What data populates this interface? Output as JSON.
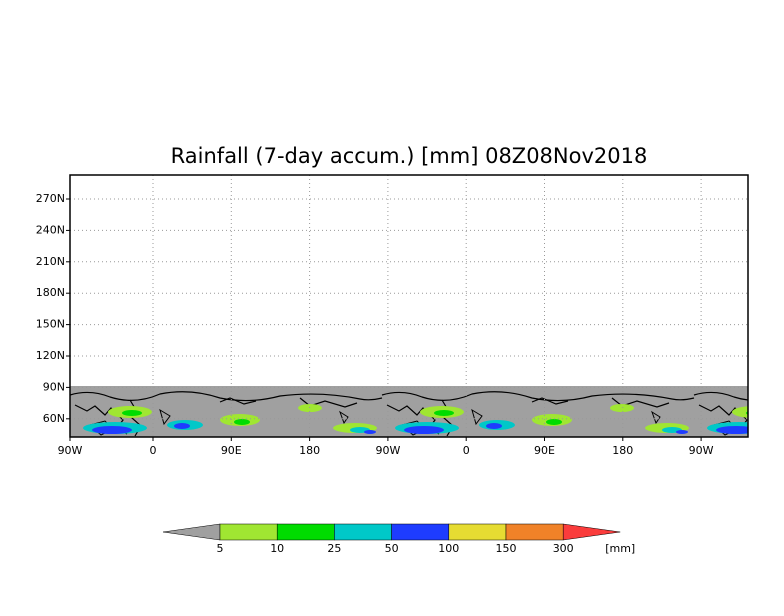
{
  "title": "Rainfall (7-day accum.) [mm] 08Z08Nov2018",
  "map": {
    "y_labels": [
      "270N",
      "240N",
      "210N",
      "180N",
      "150N",
      "120N",
      "90N",
      "60N"
    ],
    "x_labels": [
      "90W",
      "0",
      "90E",
      "180",
      "90W",
      "0",
      "90E",
      "180",
      "90W"
    ]
  },
  "colorbar": {
    "thresholds": [
      5,
      10,
      25,
      50,
      100,
      150,
      300
    ],
    "unit": "[mm]",
    "colors": [
      "#a0a0a0",
      "#a0e632",
      "#00dc00",
      "#00c8c8",
      "#1e3cff",
      "#e6dc32",
      "#f08228",
      "#fa3c3c"
    ]
  }
}
